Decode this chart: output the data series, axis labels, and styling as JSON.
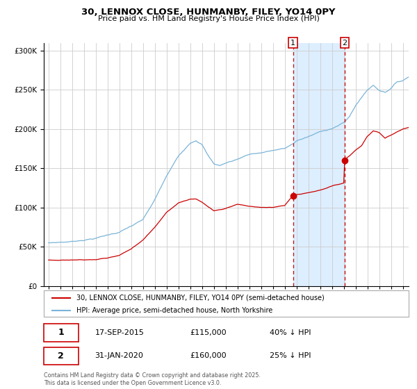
{
  "title": "30, LENNOX CLOSE, HUNMANBY, FILEY, YO14 0PY",
  "subtitle": "Price paid vs. HM Land Registry's House Price Index (HPI)",
  "legend_line1": "30, LENNOX CLOSE, HUNMANBY, FILEY, YO14 0PY (semi-detached house)",
  "legend_line2": "HPI: Average price, semi-detached house, North Yorkshire",
  "footnote": "Contains HM Land Registry data © Crown copyright and database right 2025.\nThis data is licensed under the Open Government Licence v3.0.",
  "sale1_date": "17-SEP-2015",
  "sale1_price": 115000,
  "sale1_label": "40% ↓ HPI",
  "sale2_date": "31-JAN-2020",
  "sale2_price": 160000,
  "sale2_label": "25% ↓ HPI",
  "hpi_color": "#7ab4d8",
  "property_color": "#cc0000",
  "marker_color": "#cc0000",
  "vline_color": "#cc0000",
  "shade_color": "#ddeeff",
  "ylim": [
    0,
    310000
  ],
  "xlim_start": 1994.6,
  "xlim_end": 2025.5,
  "sale1_year": 2015.71,
  "sale2_year": 2020.08
}
